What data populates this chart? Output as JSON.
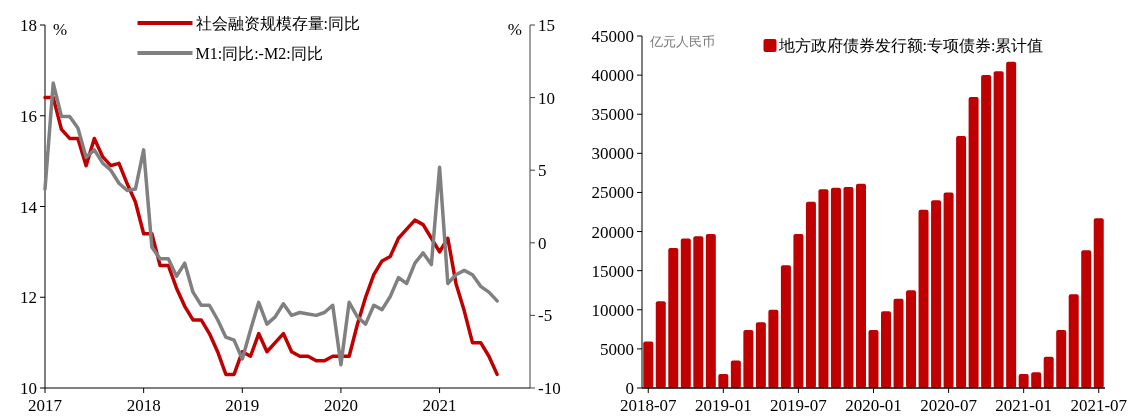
{
  "chart_data": [
    {
      "type": "line",
      "ylabel": "%",
      "y2label": "%",
      "legend": "top",
      "x": [
        "2017-01",
        "2017-02",
        "2017-03",
        "2017-04",
        "2017-05",
        "2017-06",
        "2017-07",
        "2017-08",
        "2017-09",
        "2017-10",
        "2017-11",
        "2017-12",
        "2018-01",
        "2018-02",
        "2018-03",
        "2018-04",
        "2018-05",
        "2018-06",
        "2018-07",
        "2018-08",
        "2018-09",
        "2018-10",
        "2018-11",
        "2018-12",
        "2019-01",
        "2019-02",
        "2019-03",
        "2019-04",
        "2019-05",
        "2019-06",
        "2019-07",
        "2019-08",
        "2019-09",
        "2019-10",
        "2019-11",
        "2019-12",
        "2020-01",
        "2020-02",
        "2020-03",
        "2020-04",
        "2020-05",
        "2020-06",
        "2020-07",
        "2020-08",
        "2020-09",
        "2020-10",
        "2020-11",
        "2020-12",
        "2021-01",
        "2021-02",
        "2021-03",
        "2021-04",
        "2021-05",
        "2021-06",
        "2021-07",
        "2021-08"
      ],
      "xlim": [
        "2017-01",
        "2021-12"
      ],
      "xticks": [
        {
          "value": "2017-01",
          "label": "2017"
        },
        {
          "value": "2018-01",
          "label": "2018"
        },
        {
          "value": "2019-01",
          "label": "2019"
        },
        {
          "value": "2020-01",
          "label": "2020"
        },
        {
          "value": "2021-01",
          "label": "2021"
        }
      ],
      "ylim": [
        10,
        18
      ],
      "yticks": [
        10,
        12,
        14,
        16,
        18
      ],
      "y2lim": [
        -10,
        15
      ],
      "y2ticks": [
        -10,
        -5,
        0,
        5,
        10,
        15
      ],
      "series": [
        {
          "name": "社会融资规模存量:同比",
          "color": "#c00000",
          "values": [
            16.4,
            16.4,
            15.7,
            15.5,
            15.5,
            14.9,
            15.5,
            15.1,
            14.9,
            14.95,
            14.5,
            14.1,
            13.4,
            13.4,
            12.7,
            12.7,
            12.2,
            11.8,
            11.5,
            11.5,
            11.2,
            10.8,
            10.3,
            10.3,
            10.8,
            10.7,
            11.2,
            10.8,
            11.0,
            11.2,
            10.8,
            10.7,
            10.7,
            10.6,
            10.6,
            10.7,
            10.7,
            10.7,
            11.4,
            12.0,
            12.5,
            12.8,
            12.9,
            13.3,
            13.5,
            13.7,
            13.6,
            13.3,
            13.0,
            13.3,
            12.3,
            11.7,
            11.0,
            11.0,
            10.7,
            10.3
          ]
        },
        {
          "name": "M1:同比:-M2:同比",
          "color": "#808080",
          "axis": "y2",
          "values": [
            3.7,
            11.0,
            8.7,
            8.7,
            7.9,
            5.9,
            6.4,
            5.5,
            5.0,
            4.1,
            3.6,
            3.7,
            6.4,
            -0.3,
            -1.1,
            -1.1,
            -2.3,
            -1.4,
            -3.4,
            -4.3,
            -4.3,
            -5.3,
            -6.5,
            -6.7,
            -8.0,
            -6.0,
            -4.1,
            -5.6,
            -5.1,
            -4.2,
            -5.0,
            -4.8,
            -4.9,
            -5.0,
            -4.8,
            -4.3,
            -8.4,
            -4.1,
            -5.1,
            -5.6,
            -4.3,
            -4.6,
            -3.7,
            -2.4,
            -2.8,
            -1.4,
            -0.7,
            -1.5,
            5.2,
            -2.8,
            -2.2,
            -1.9,
            -2.2,
            -3.0,
            -3.4,
            -4.0
          ]
        }
      ]
    },
    {
      "type": "bar",
      "ylabel": "亿元人民币",
      "legend": "top",
      "categories": [
        "2018-07",
        null,
        null,
        null,
        null,
        null,
        "2019-01",
        null,
        null,
        null,
        null,
        null,
        "2019-07",
        null,
        null,
        null,
        null,
        null,
        "2020-01",
        null,
        null,
        null,
        null,
        null,
        "2020-07",
        null,
        null,
        null,
        null,
        null,
        "2021-01",
        null,
        null,
        null,
        null,
        null,
        "2021-07"
      ],
      "ylim": [
        0,
        45000
      ],
      "yticks": [
        0,
        5000,
        10000,
        15000,
        20000,
        25000,
        30000,
        35000,
        40000,
        45000
      ],
      "series": [
        {
          "name": "地方政府债券发行额:专项债券:累计值",
          "color": "#c00000",
          "values": [
            5950,
            11100,
            17900,
            19100,
            19400,
            19700,
            1800,
            3500,
            7400,
            8400,
            10000,
            15700,
            19700,
            23800,
            25400,
            25600,
            25700,
            26100,
            7400,
            9800,
            11400,
            12500,
            22800,
            24000,
            25000,
            32200,
            37200,
            40000,
            40500,
            41700,
            1800,
            2000,
            4000,
            7400,
            12000,
            17600,
            21700
          ]
        }
      ]
    }
  ]
}
